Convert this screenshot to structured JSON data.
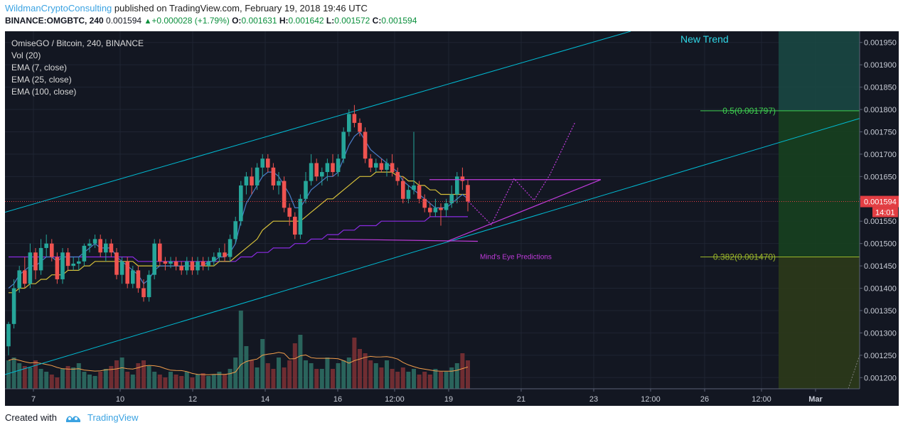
{
  "header": {
    "author": "WildmanCryptoConsulting",
    "published_text": "published on TradingView.com, February 19, 2018 19:46 UTC",
    "symbol": "BINANCE:OMGBTC, 240",
    "last": "0.001594",
    "change": "+0.000028 (+1.79%)",
    "o_label": "O:",
    "o_value": "0.001631",
    "h_label": "H:",
    "h_value": "0.001642",
    "l_label": "L:",
    "l_value": "0.001572",
    "c_label": "C:",
    "c_value": "0.001594"
  },
  "legend": {
    "title": "OmiseGO / Bitcoin, 240, BINANCE",
    "vol": "Vol (20)",
    "ema7": "EMA (7, close)",
    "ema25": "EMA (25, close)",
    "ema100": "EMA (100, close)"
  },
  "footer": {
    "created_with": "Created with",
    "brand": "TradingView"
  },
  "colors": {
    "background": "#131722",
    "up": "#26a69a",
    "down": "#ef5350",
    "channel": "#00bcd4",
    "ema7": "#4a7ec9",
    "ema25": "#d6c03a",
    "ema100": "#8a2be2",
    "prediction": "#c03bdc",
    "fib_05": "#3ecf4f",
    "fib_0382": "#9bb62a",
    "price_label": "#e33e43",
    "new_trend": "#2fd7e6"
  },
  "chart_data": {
    "type": "candlestick",
    "symbol": "OMGBTC",
    "exchange": "BINANCE",
    "interval": "240",
    "ylim": [
      0.001175,
      0.001975
    ],
    "yticks": [
      "0.001200",
      "0.001250",
      "0.001300",
      "0.001350",
      "0.001400",
      "0.001450",
      "0.001500",
      "0.001550",
      "0.001600",
      "0.001650",
      "0.001700",
      "0.001750",
      "0.001800",
      "0.001850",
      "0.001900",
      "0.001950"
    ],
    "xticks": [
      "7",
      "10",
      "12",
      "14",
      "16",
      "12:00",
      "19",
      "21",
      "23",
      "12:00",
      "26",
      "12:00",
      "Mar"
    ],
    "last_price": "0.001594",
    "countdown": "14:01",
    "candles": [
      {
        "o": 0.00127,
        "h": 0.001325,
        "l": 0.00125,
        "c": 0.00132
      },
      {
        "o": 0.00132,
        "h": 0.00142,
        "l": 0.00131,
        "c": 0.0014
      },
      {
        "o": 0.0014,
        "h": 0.00145,
        "l": 0.00139,
        "c": 0.00144
      },
      {
        "o": 0.00144,
        "h": 0.00147,
        "l": 0.0014,
        "c": 0.00141
      },
      {
        "o": 0.00141,
        "h": 0.0015,
        "l": 0.0014,
        "c": 0.00148
      },
      {
        "o": 0.00148,
        "h": 0.00149,
        "l": 0.00142,
        "c": 0.00144
      },
      {
        "o": 0.00144,
        "h": 0.00151,
        "l": 0.00143,
        "c": 0.00149
      },
      {
        "o": 0.00149,
        "h": 0.00152,
        "l": 0.00147,
        "c": 0.0015
      },
      {
        "o": 0.0015,
        "h": 0.00151,
        "l": 0.00146,
        "c": 0.00147
      },
      {
        "o": 0.00147,
        "h": 0.00148,
        "l": 0.00141,
        "c": 0.00142
      },
      {
        "o": 0.00142,
        "h": 0.00149,
        "l": 0.00141,
        "c": 0.00148
      },
      {
        "o": 0.00148,
        "h": 0.00149,
        "l": 0.00144,
        "c": 0.00145
      },
      {
        "o": 0.00145,
        "h": 0.00147,
        "l": 0.00144,
        "c": 0.001455
      },
      {
        "o": 0.001455,
        "h": 0.00147,
        "l": 0.00144,
        "c": 0.00146
      },
      {
        "o": 0.00146,
        "h": 0.0015,
        "l": 0.00145,
        "c": 0.001495
      },
      {
        "o": 0.001495,
        "h": 0.00151,
        "l": 0.00148,
        "c": 0.0015
      },
      {
        "o": 0.0015,
        "h": 0.00152,
        "l": 0.00149,
        "c": 0.00151
      },
      {
        "o": 0.00151,
        "h": 0.00152,
        "l": 0.00147,
        "c": 0.00148
      },
      {
        "o": 0.00148,
        "h": 0.00151,
        "l": 0.00146,
        "c": 0.0015
      },
      {
        "o": 0.0015,
        "h": 0.00151,
        "l": 0.00147,
        "c": 0.00148
      },
      {
        "o": 0.00148,
        "h": 0.00149,
        "l": 0.00142,
        "c": 0.00143
      },
      {
        "o": 0.00143,
        "h": 0.00147,
        "l": 0.00141,
        "c": 0.00146
      },
      {
        "o": 0.00146,
        "h": 0.00147,
        "l": 0.0014,
        "c": 0.00141
      },
      {
        "o": 0.00141,
        "h": 0.00145,
        "l": 0.0014,
        "c": 0.00144
      },
      {
        "o": 0.00144,
        "h": 0.00145,
        "l": 0.00139,
        "c": 0.0014
      },
      {
        "o": 0.0014,
        "h": 0.00142,
        "l": 0.00137,
        "c": 0.00138
      },
      {
        "o": 0.00138,
        "h": 0.00144,
        "l": 0.00137,
        "c": 0.00143
      },
      {
        "o": 0.00143,
        "h": 0.00151,
        "l": 0.00142,
        "c": 0.0015
      },
      {
        "o": 0.0015,
        "h": 0.00151,
        "l": 0.00145,
        "c": 0.00146
      },
      {
        "o": 0.00146,
        "h": 0.00147,
        "l": 0.00144,
        "c": 0.001455
      },
      {
        "o": 0.001455,
        "h": 0.00147,
        "l": 0.001445,
        "c": 0.00146
      },
      {
        "o": 0.00146,
        "h": 0.00147,
        "l": 0.00144,
        "c": 0.00145
      },
      {
        "o": 0.00145,
        "h": 0.00146,
        "l": 0.00143,
        "c": 0.00144
      },
      {
        "o": 0.00144,
        "h": 0.00147,
        "l": 0.00143,
        "c": 0.00146
      },
      {
        "o": 0.00146,
        "h": 0.00147,
        "l": 0.00143,
        "c": 0.00144
      },
      {
        "o": 0.00144,
        "h": 0.00147,
        "l": 0.00143,
        "c": 0.00146
      },
      {
        "o": 0.00146,
        "h": 0.00147,
        "l": 0.00144,
        "c": 0.00145
      },
      {
        "o": 0.00145,
        "h": 0.00147,
        "l": 0.00144,
        "c": 0.00146
      },
      {
        "o": 0.00146,
        "h": 0.00148,
        "l": 0.00145,
        "c": 0.00147
      },
      {
        "o": 0.00147,
        "h": 0.00149,
        "l": 0.00146,
        "c": 0.00148
      },
      {
        "o": 0.00148,
        "h": 0.0015,
        "l": 0.00146,
        "c": 0.00147
      },
      {
        "o": 0.00147,
        "h": 0.00152,
        "l": 0.00146,
        "c": 0.00151
      },
      {
        "o": 0.00151,
        "h": 0.00156,
        "l": 0.0015,
        "c": 0.00155
      },
      {
        "o": 0.00155,
        "h": 0.00164,
        "l": 0.00154,
        "c": 0.00163
      },
      {
        "o": 0.00163,
        "h": 0.00166,
        "l": 0.00161,
        "c": 0.00165
      },
      {
        "o": 0.00165,
        "h": 0.00167,
        "l": 0.00161,
        "c": 0.00163
      },
      {
        "o": 0.00163,
        "h": 0.00168,
        "l": 0.00162,
        "c": 0.00167
      },
      {
        "o": 0.00167,
        "h": 0.0017,
        "l": 0.00165,
        "c": 0.00169
      },
      {
        "o": 0.00169,
        "h": 0.0017,
        "l": 0.00166,
        "c": 0.00167
      },
      {
        "o": 0.00167,
        "h": 0.00168,
        "l": 0.00162,
        "c": 0.00163
      },
      {
        "o": 0.00163,
        "h": 0.00166,
        "l": 0.00161,
        "c": 0.00164
      },
      {
        "o": 0.00164,
        "h": 0.00165,
        "l": 0.00157,
        "c": 0.00158
      },
      {
        "o": 0.00158,
        "h": 0.00159,
        "l": 0.00154,
        "c": 0.00156
      },
      {
        "o": 0.00156,
        "h": 0.00157,
        "l": 0.00151,
        "c": 0.00152
      },
      {
        "o": 0.00152,
        "h": 0.00161,
        "l": 0.00151,
        "c": 0.0016
      },
      {
        "o": 0.0016,
        "h": 0.00166,
        "l": 0.00159,
        "c": 0.00164
      },
      {
        "o": 0.00164,
        "h": 0.0017,
        "l": 0.00163,
        "c": 0.00168
      },
      {
        "o": 0.00168,
        "h": 0.00169,
        "l": 0.00164,
        "c": 0.00165
      },
      {
        "o": 0.00165,
        "h": 0.00167,
        "l": 0.00163,
        "c": 0.00166
      },
      {
        "o": 0.00166,
        "h": 0.00169,
        "l": 0.00164,
        "c": 0.00168
      },
      {
        "o": 0.00168,
        "h": 0.0017,
        "l": 0.00165,
        "c": 0.00166
      },
      {
        "o": 0.00166,
        "h": 0.0017,
        "l": 0.00165,
        "c": 0.00169
      },
      {
        "o": 0.00169,
        "h": 0.00176,
        "l": 0.00168,
        "c": 0.00175
      },
      {
        "o": 0.00175,
        "h": 0.0018,
        "l": 0.00174,
        "c": 0.00179
      },
      {
        "o": 0.00179,
        "h": 0.00181,
        "l": 0.00176,
        "c": 0.00177
      },
      {
        "o": 0.00177,
        "h": 0.00178,
        "l": 0.00174,
        "c": 0.00175
      },
      {
        "o": 0.00175,
        "h": 0.00176,
        "l": 0.00168,
        "c": 0.00169
      },
      {
        "o": 0.00169,
        "h": 0.0017,
        "l": 0.00166,
        "c": 0.00167
      },
      {
        "o": 0.00167,
        "h": 0.00169,
        "l": 0.00166,
        "c": 0.00168
      },
      {
        "o": 0.00168,
        "h": 0.00169,
        "l": 0.00166,
        "c": 0.001665
      },
      {
        "o": 0.001665,
        "h": 0.00169,
        "l": 0.00165,
        "c": 0.00168
      },
      {
        "o": 0.00168,
        "h": 0.0017,
        "l": 0.00165,
        "c": 0.00166
      },
      {
        "o": 0.00166,
        "h": 0.00167,
        "l": 0.00163,
        "c": 0.00164
      },
      {
        "o": 0.00164,
        "h": 0.00165,
        "l": 0.00159,
        "c": 0.0016
      },
      {
        "o": 0.0016,
        "h": 0.00163,
        "l": 0.00159,
        "c": 0.00162
      },
      {
        "o": 0.00162,
        "h": 0.00175,
        "l": 0.00161,
        "c": 0.00163
      },
      {
        "o": 0.00163,
        "h": 0.00164,
        "l": 0.00159,
        "c": 0.0016
      },
      {
        "o": 0.0016,
        "h": 0.00161,
        "l": 0.00157,
        "c": 0.00158
      },
      {
        "o": 0.00158,
        "h": 0.00159,
        "l": 0.00156,
        "c": 0.00157
      },
      {
        "o": 0.00157,
        "h": 0.0016,
        "l": 0.00156,
        "c": 0.00158
      },
      {
        "o": 0.00158,
        "h": 0.00159,
        "l": 0.00154,
        "c": 0.001575
      },
      {
        "o": 0.001575,
        "h": 0.0016,
        "l": 0.00156,
        "c": 0.00159
      },
      {
        "o": 0.00159,
        "h": 0.00163,
        "l": 0.00158,
        "c": 0.00161
      },
      {
        "o": 0.00161,
        "h": 0.00166,
        "l": 0.00159,
        "c": 0.00165
      },
      {
        "o": 0.00165,
        "h": 0.00167,
        "l": 0.00162,
        "c": 0.00164
      },
      {
        "o": 0.001631,
        "h": 0.001642,
        "l": 0.001572,
        "c": 0.001594
      }
    ],
    "volume": [
      20,
      22,
      18,
      16,
      15,
      20,
      14,
      12,
      10,
      8,
      14,
      16,
      15,
      18,
      12,
      10,
      9,
      12,
      14,
      16,
      20,
      22,
      12,
      10,
      18,
      20,
      16,
      12,
      10,
      8,
      12,
      10,
      9,
      12,
      8,
      10,
      11,
      9,
      10,
      12,
      10,
      14,
      22,
      55,
      30,
      20,
      15,
      35,
      18,
      14,
      22,
      15,
      20,
      32,
      38,
      20,
      18,
      14,
      14,
      22,
      14,
      18,
      20,
      22,
      36,
      28,
      25,
      20,
      18,
      15,
      20,
      14,
      12,
      15,
      12,
      14,
      10,
      12,
      10,
      14,
      12,
      12,
      15,
      18,
      25,
      20
    ],
    "ema7": [
      0.0014,
      0.00141,
      0.00143,
      0.00144,
      0.00145,
      0.00145,
      0.00146,
      0.00147,
      0.00147,
      0.00146,
      0.00147,
      0.00147,
      0.00147,
      0.00147,
      0.00148,
      0.00149,
      0.0015,
      0.00149,
      0.00149,
      0.00149,
      0.00147,
      0.00146,
      0.00145,
      0.00144,
      0.00143,
      0.00141,
      0.00142,
      0.00144,
      0.00145,
      0.00145,
      0.00145,
      0.00145,
      0.00145,
      0.00145,
      0.00145,
      0.00145,
      0.00145,
      0.00146,
      0.00146,
      0.00147,
      0.00147,
      0.00148,
      0.0015,
      0.00155,
      0.00159,
      0.00161,
      0.00163,
      0.00165,
      0.00166,
      0.00166,
      0.00165,
      0.00163,
      0.00161,
      0.00158,
      0.00158,
      0.0016,
      0.00162,
      0.00163,
      0.00164,
      0.00165,
      0.00165,
      0.00166,
      0.00169,
      0.00172,
      0.00174,
      0.00175,
      0.00173,
      0.00171,
      0.0017,
      0.00169,
      0.00168,
      0.00167,
      0.00166,
      0.00164,
      0.00163,
      0.00162,
      0.00161,
      0.0016,
      0.00159,
      0.00158,
      0.00158,
      0.00158,
      0.00159,
      0.0016,
      0.00161,
      0.0016
    ],
    "ema25": [
      0.00139,
      0.00139,
      0.0014,
      0.0014,
      0.00141,
      0.00141,
      0.00142,
      0.00142,
      0.00143,
      0.00143,
      0.00143,
      0.00144,
      0.00144,
      0.00144,
      0.00145,
      0.00145,
      0.00146,
      0.00146,
      0.00146,
      0.00146,
      0.00146,
      0.00146,
      0.00146,
      0.00146,
      0.00145,
      0.00145,
      0.00145,
      0.00145,
      0.00145,
      0.00145,
      0.00145,
      0.00145,
      0.00145,
      0.00145,
      0.00145,
      0.00145,
      0.00145,
      0.00145,
      0.00145,
      0.00146,
      0.00146,
      0.00146,
      0.00147,
      0.00148,
      0.00149,
      0.0015,
      0.00151,
      0.00153,
      0.00154,
      0.00155,
      0.00155,
      0.00155,
      0.00155,
      0.00155,
      0.00155,
      0.00156,
      0.00157,
      0.00158,
      0.00159,
      0.0016,
      0.0016,
      0.00161,
      0.00162,
      0.00163,
      0.00164,
      0.00165,
      0.00165,
      0.00165,
      0.00166,
      0.00166,
      0.00166,
      0.00166,
      0.00165,
      0.00165,
      0.00164,
      0.00164,
      0.00163,
      0.00163,
      0.00162,
      0.00162,
      0.00161,
      0.00161,
      0.00161,
      0.00161,
      0.00161,
      0.00161
    ],
    "ema100": [
      0.00147,
      0.00147,
      0.00147,
      0.00147,
      0.00147,
      0.00147,
      0.00147,
      0.00147,
      0.00147,
      0.00147,
      0.00147,
      0.00147,
      0.00147,
      0.00147,
      0.00147,
      0.00147,
      0.00147,
      0.00147,
      0.00147,
      0.00147,
      0.00147,
      0.00147,
      0.00147,
      0.00147,
      0.00146,
      0.00146,
      0.00146,
      0.00146,
      0.00146,
      0.00146,
      0.00146,
      0.00146,
      0.00146,
      0.00146,
      0.00146,
      0.00146,
      0.00146,
      0.00146,
      0.00146,
      0.00146,
      0.00146,
      0.00146,
      0.00146,
      0.00147,
      0.00147,
      0.00147,
      0.00148,
      0.00148,
      0.00148,
      0.00149,
      0.00149,
      0.00149,
      0.00149,
      0.0015,
      0.0015,
      0.0015,
      0.00151,
      0.00151,
      0.00151,
      0.00152,
      0.00152,
      0.00152,
      0.00153,
      0.00153,
      0.00153,
      0.00154,
      0.00154,
      0.00154,
      0.00154,
      0.00155,
      0.00155,
      0.00155,
      0.00155,
      0.00155,
      0.00155,
      0.00155,
      0.00155,
      0.00155,
      0.00156,
      0.00156,
      0.00156,
      0.00156,
      0.00156,
      0.00156,
      0.00156,
      0.00156
    ],
    "annotations": {
      "new_trend": "New Trend",
      "fib_05": "0.5(0.001797)",
      "fib_0382": "0.382(0.001470)",
      "predictions": "Mind's Eye Predictions"
    }
  }
}
